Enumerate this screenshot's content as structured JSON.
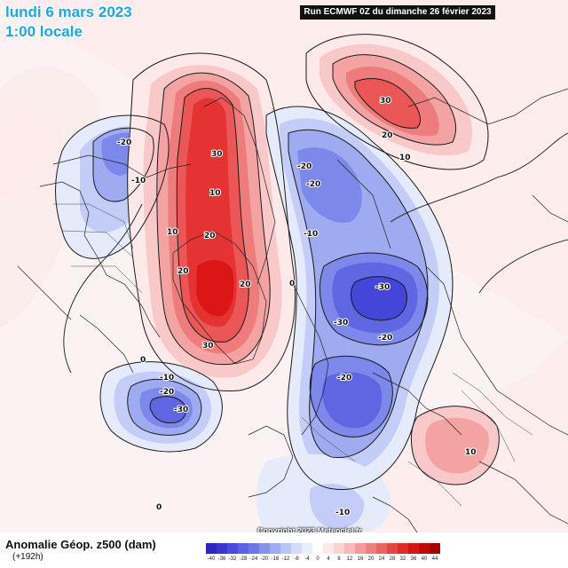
{
  "header": {
    "date": "lundi 6 mars 2023",
    "hour": "1:00 locale",
    "run": "Run ECMWF 0Z du dimanche 26 février 2023"
  },
  "footer": {
    "title": "Anomalie Géop. z500 (dam)",
    "subtitle": "(+192h)",
    "copyright": "Copyright 2023 Meteociel.fr"
  },
  "scale": {
    "values": [
      "-40",
      "-36",
      "-32",
      "-28",
      "-24",
      "-20",
      "-16",
      "-12",
      "-8",
      "-4",
      "0",
      "4",
      "8",
      "12",
      "16",
      "20",
      "24",
      "28",
      "32",
      "36",
      "40",
      "44"
    ],
    "colors": [
      "#2d25c6",
      "#3b35d6",
      "#4a49e0",
      "#5b60e6",
      "#6d77ea",
      "#8491ee",
      "#9eacf2",
      "#b9c5f6",
      "#d3dcf9",
      "#e9eefc",
      "#ffffff",
      "#fde9e9",
      "#fad3d3",
      "#f7b9b9",
      "#f39c9c",
      "#ef7f7f",
      "#eb6262",
      "#e74545",
      "#e22a2a",
      "#d51414",
      "#c20808",
      "#a80000"
    ],
    "stops": {
      "p5": "#fde9e9",
      "p10": "#f9c9c9",
      "p15": "#f4a3a3",
      "p20": "#ef7c7c",
      "p25": "#eb5757",
      "p30": "#e53333",
      "p35": "#dc1616",
      "n5": "#e6ebfc",
      "n10": "#c4cdf7",
      "n15": "#9fabf1",
      "n20": "#7c88ea",
      "n25": "#5e66e2",
      "n30": "#4346d8",
      "n35": "#2c2bca"
    }
  },
  "labels": {
    "pos": [
      {
        "text": "30"
      },
      {
        "text": "20"
      },
      {
        "text": "20"
      },
      {
        "text": "10"
      },
      {
        "text": "10"
      },
      {
        "text": "20"
      },
      {
        "text": "30"
      },
      {
        "text": "20"
      },
      {
        "text": "10"
      },
      {
        "text": "0"
      },
      {
        "text": "10"
      }
    ],
    "neg": [
      {
        "text": "-20"
      },
      {
        "text": "-10"
      },
      {
        "text": "-20"
      },
      {
        "text": "-20"
      },
      {
        "text": "-10"
      },
      {
        "text": "-30"
      },
      {
        "text": "-30"
      },
      {
        "text": "-20"
      },
      {
        "text": "-20"
      },
      {
        "text": "-10"
      },
      {
        "text": "-20"
      },
      {
        "text": "-30"
      },
      {
        "text": "0"
      },
      {
        "text": "-10"
      },
      {
        "text": "0"
      }
    ]
  }
}
